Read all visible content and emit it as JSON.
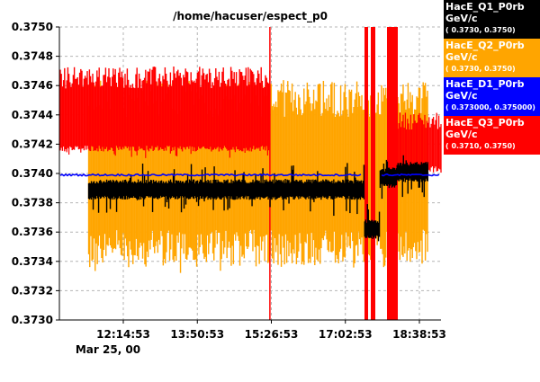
{
  "chart_data": {
    "type": "line",
    "title": "/home/hacuser/espect_p0",
    "ylim": [
      0.373,
      0.375
    ],
    "y_ticks": [
      "0.3730",
      "0.3732",
      "0.3734",
      "0.3736",
      "0.3738",
      "0.3740",
      "0.3742",
      "0.3744",
      "0.3746",
      "0.3748",
      "0.3750"
    ],
    "x_ticks": [
      "12:14:53",
      "13:50:53",
      "15:26:53",
      "17:02:53",
      "18:38:53"
    ],
    "x_date_label": "Mar 25, 00",
    "grid": true,
    "legend_placement": "right",
    "series": [
      {
        "name": "HacE_Q1_P0rb",
        "unit": "GeV/c",
        "range": "( 0.3730,  0.3750)",
        "color": "#000000",
        "x": [
          "11:30",
          "14:00",
          "16:00",
          "17:20",
          "17:28",
          "17:40",
          "17:48",
          "18:10",
          "18:50"
        ],
        "y": [
          0.37389,
          0.37389,
          0.37389,
          0.37389,
          0.37362,
          0.37362,
          0.37397,
          0.37401,
          0.37401
        ]
      },
      {
        "name": "HacE_Q2_P0rb",
        "unit": "GeV/c",
        "range": "( 0.3730,  0.3750)",
        "color": "#ffa500",
        "x": [
          "11:30",
          "15:30",
          "17:20",
          "17:30",
          "17:40",
          "18:20",
          "18:50"
        ],
        "y": [
          0.374,
          0.374,
          0.374,
          0.374,
          0.374,
          0.374,
          0.374
        ]
      },
      {
        "name": "HacE_D1_P0rb",
        "unit": "GeV/c",
        "range": "( 0.373000,  0.375000)",
        "color": "#0000ff",
        "x": [
          "11:30",
          "15:30",
          "17:20",
          "17:40",
          "18:50"
        ],
        "y": [
          0.37399,
          0.374,
          0.374,
          0.37398,
          0.37399
        ]
      },
      {
        "name": "HacE_Q3_P0rb",
        "unit": "GeV/c",
        "range": "( 0.3710,  0.3750)",
        "color": "#ff0000",
        "x": [
          "11:30",
          "15:25",
          "17:20",
          "17:30",
          "18:20",
          "18:50"
        ],
        "y": [
          0.3742,
          0.3742,
          0.3742,
          0.3742,
          0.3741,
          0.3741
        ]
      }
    ]
  }
}
